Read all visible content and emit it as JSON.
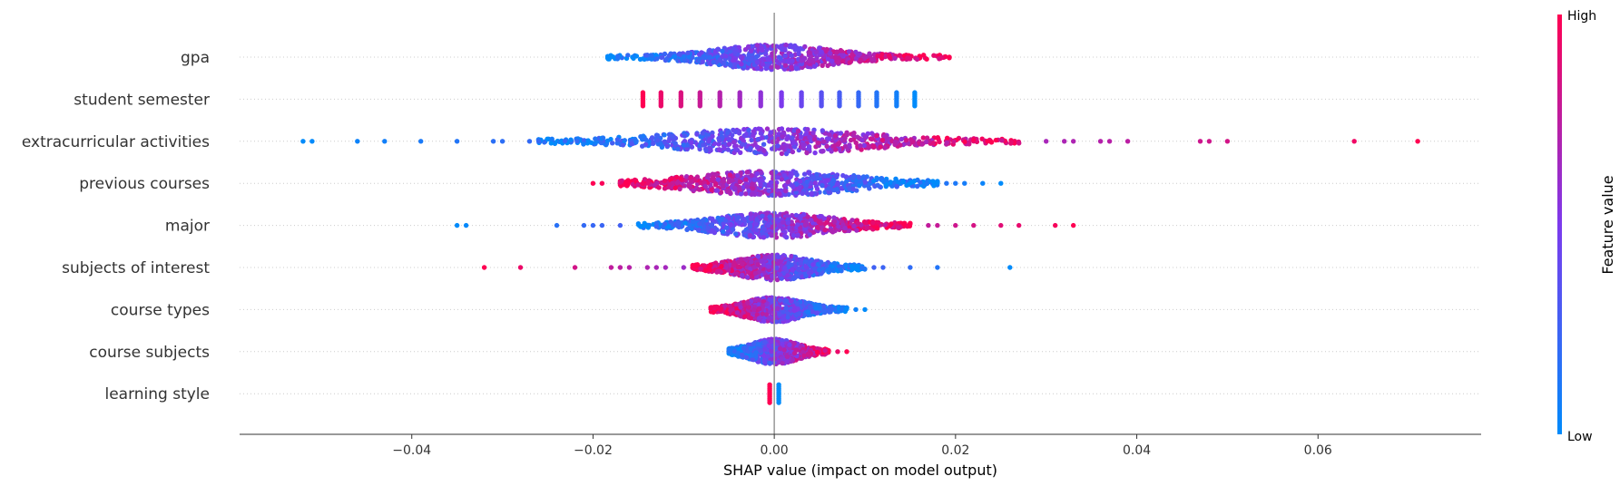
{
  "colors": {
    "low": "#008bfb",
    "mid": "#7c3aed",
    "high": "#ff0052",
    "grid": "#cccccc",
    "axis": "#333333",
    "zero_line": "#999999"
  },
  "chart_data": {
    "type": "scatter",
    "subtype": "shap-beeswarm",
    "title": "",
    "xlabel": "SHAP value (impact on model output)",
    "ylabel": "",
    "xlim": [
      -0.059,
      0.078
    ],
    "xticks": [
      -0.04,
      -0.02,
      0.0,
      0.02,
      0.04,
      0.06
    ],
    "xtick_labels": [
      "−0.04",
      "−0.02",
      "0.00",
      "0.02",
      "0.04",
      "0.06"
    ],
    "features": [
      {
        "name": "gpa",
        "range": [
          -0.0185,
          0.0195
        ],
        "outliers": [],
        "pattern": "positive",
        "spread": 0.006
      },
      {
        "name": "student semester",
        "range": [
          -0.0145,
          0.0155
        ],
        "outliers": [],
        "pattern": "discrete",
        "levels": [
          -0.0145,
          -0.0125,
          -0.0103,
          -0.0082,
          -0.006,
          -0.0038,
          -0.0015,
          0.0008,
          0.003,
          0.0052,
          0.0072,
          0.0093,
          0.0113,
          0.0135,
          0.0155
        ]
      },
      {
        "name": "extracurricular activities",
        "range": [
          -0.026,
          0.027
        ],
        "outliers": [
          -0.052,
          -0.051,
          -0.046,
          -0.043,
          -0.039,
          -0.035,
          -0.031,
          -0.03,
          -0.027,
          -0.026,
          0.03,
          0.032,
          0.033,
          0.036,
          0.037,
          0.039,
          0.047,
          0.048,
          0.05,
          0.064,
          0.071
        ],
        "pattern": "positive",
        "spread": 0.01
      },
      {
        "name": "previous courses",
        "range": [
          -0.017,
          0.018
        ],
        "outliers": [
          -0.02,
          -0.019,
          0.019,
          0.02,
          0.021,
          0.023,
          0.025
        ],
        "pattern": "negative",
        "spread": 0.008
      },
      {
        "name": "major",
        "range": [
          -0.015,
          0.015
        ],
        "outliers": [
          -0.035,
          -0.034,
          -0.024,
          -0.021,
          -0.02,
          -0.019,
          -0.017,
          0.017,
          0.018,
          0.02,
          0.022,
          0.025,
          0.027,
          0.031,
          0.033
        ],
        "pattern": "positive",
        "spread": 0.006
      },
      {
        "name": "subjects of interest",
        "range": [
          -0.009,
          0.01
        ],
        "outliers": [
          -0.032,
          -0.028,
          -0.022,
          -0.018,
          -0.017,
          -0.016,
          -0.014,
          -0.013,
          -0.012,
          -0.01,
          0.011,
          0.012,
          0.015,
          0.018,
          0.026
        ],
        "pattern": "negative",
        "spread": 0.004
      },
      {
        "name": "course types",
        "range": [
          -0.007,
          0.008
        ],
        "outliers": [
          0.009,
          0.01
        ],
        "pattern": "negative",
        "spread": 0.003
      },
      {
        "name": "course subjects",
        "range": [
          -0.005,
          0.006
        ],
        "outliers": [
          0.007,
          0.008
        ],
        "pattern": "positive",
        "spread": 0.0025
      },
      {
        "name": "learning style",
        "range": [
          -0.0009,
          0.0008
        ],
        "outliers": [],
        "pattern": "binary"
      }
    ],
    "colorbar": {
      "label": "Feature value",
      "high_label": "High",
      "low_label": "Low"
    }
  }
}
